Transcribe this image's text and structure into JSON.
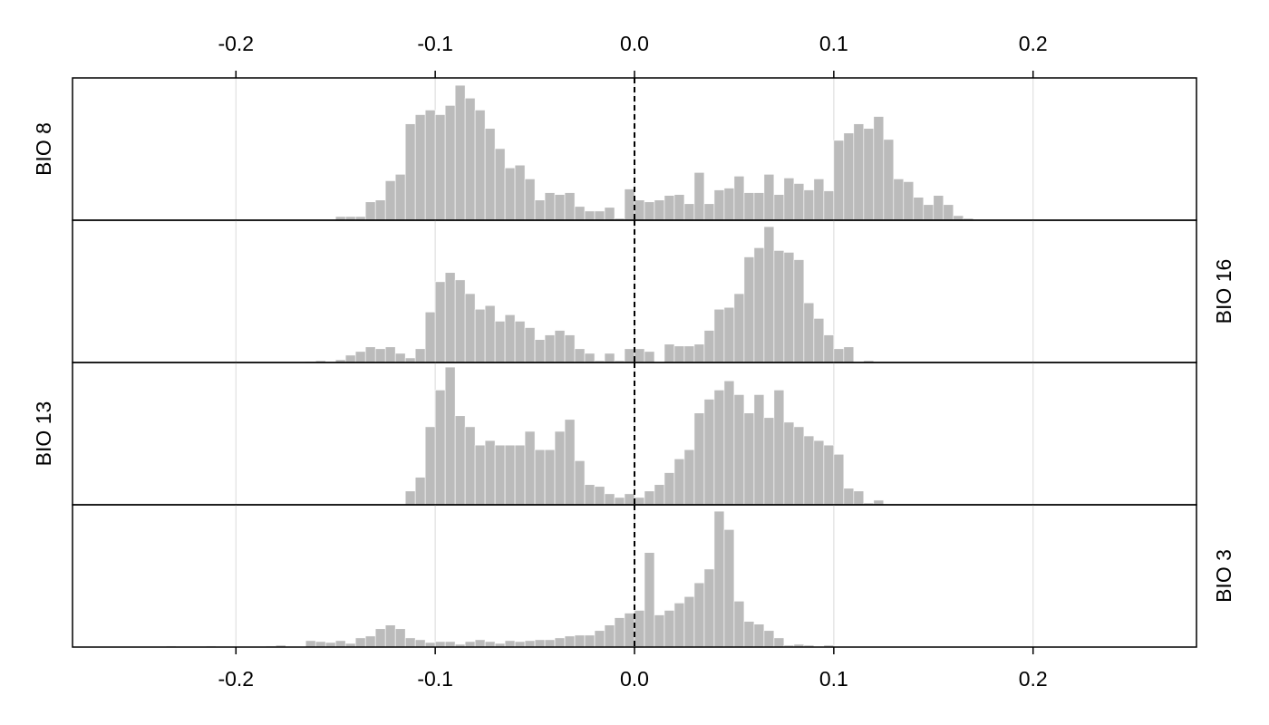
{
  "chart_data": [
    {
      "type": "histogram",
      "title": "BIO 8",
      "label_side": "left",
      "color": "#bbbbbb",
      "bins": [
        -0.235,
        -0.23,
        -0.225,
        -0.22,
        -0.215,
        -0.21,
        -0.205,
        -0.2,
        -0.195,
        -0.19,
        -0.185,
        -0.18,
        -0.175,
        -0.17,
        -0.165,
        -0.16,
        -0.155,
        -0.15,
        -0.145,
        -0.14,
        -0.135,
        -0.13,
        -0.125,
        -0.12,
        -0.115,
        -0.11,
        -0.105,
        -0.1,
        -0.095,
        -0.09,
        -0.085,
        -0.08,
        -0.075,
        -0.07,
        -0.065,
        -0.06,
        -0.055,
        -0.05,
        -0.045,
        -0.04,
        -0.035,
        -0.03,
        -0.025,
        -0.02,
        -0.015,
        -0.01,
        -0.005,
        0,
        0.005,
        0.01,
        0.015,
        0.02,
        0.025,
        0.03,
        0.035,
        0.04,
        0.045,
        0.05,
        0.055,
        0.06,
        0.065,
        0.07,
        0.075,
        0.08,
        0.085,
        0.09,
        0.095,
        0.1,
        0.105,
        0.11,
        0.115,
        0.12,
        0.125,
        0.13,
        0.135,
        0.14,
        0.145,
        0.15,
        0.155,
        0.16,
        0.165,
        0.17,
        0.175,
        0.18
      ],
      "values": [
        0,
        0,
        0,
        0,
        0,
        0,
        0,
        0,
        0,
        0,
        0,
        0,
        0,
        0,
        0,
        0,
        0,
        4,
        4,
        4,
        20,
        22,
        43,
        50,
        105,
        115,
        120,
        115,
        125,
        147,
        133,
        120,
        100,
        78,
        57,
        60,
        45,
        22,
        30,
        28,
        30,
        15,
        10,
        10,
        14,
        2,
        34,
        22,
        20,
        22,
        27,
        28,
        18,
        52,
        18,
        33,
        35,
        48,
        30,
        30,
        50,
        28,
        46,
        40,
        33,
        45,
        32,
        87,
        95,
        105,
        100,
        113,
        88,
        45,
        42,
        25,
        17,
        27,
        17,
        5,
        2,
        0,
        0
      ],
      "xlim": [
        -0.282,
        0.282
      ],
      "xticks": [
        -0.2,
        -0.1,
        {
          "value": 0,
          "label": "0.0"
        },
        0.1,
        0.2
      ],
      "ylim": [
        0,
        155
      ],
      "grid": true,
      "vline": 0
    },
    {
      "type": "histogram",
      "title": "BIO 16",
      "label_side": "right",
      "color": "#bbbbbb",
      "bins": [
        -0.235,
        -0.23,
        -0.225,
        -0.22,
        -0.215,
        -0.21,
        -0.205,
        -0.2,
        -0.195,
        -0.19,
        -0.185,
        -0.18,
        -0.175,
        -0.17,
        -0.165,
        -0.16,
        -0.155,
        -0.15,
        -0.145,
        -0.14,
        -0.135,
        -0.13,
        -0.125,
        -0.12,
        -0.115,
        -0.11,
        -0.105,
        -0.1,
        -0.095,
        -0.09,
        -0.085,
        -0.08,
        -0.075,
        -0.07,
        -0.065,
        -0.06,
        -0.055,
        -0.05,
        -0.045,
        -0.04,
        -0.035,
        -0.03,
        -0.025,
        -0.02,
        -0.015,
        -0.01,
        -0.005,
        0,
        0.005,
        0.01,
        0.015,
        0.02,
        0.025,
        0.03,
        0.035,
        0.04,
        0.045,
        0.05,
        0.055,
        0.06,
        0.065,
        0.07,
        0.075,
        0.08,
        0.085,
        0.09,
        0.095,
        0.1,
        0.105,
        0.11,
        0.115,
        0.12,
        0.125,
        0.13,
        0.135,
        0.14,
        0.145,
        0.15,
        0.155,
        0.16,
        0.165,
        0.17,
        0.175,
        0.18
      ],
      "values": [
        0,
        0,
        0,
        0,
        0,
        0,
        0,
        0,
        0,
        0,
        0,
        0,
        0,
        0,
        1,
        2,
        0,
        3,
        8,
        12,
        17,
        15,
        17,
        10,
        5,
        15,
        55,
        88,
        98,
        90,
        75,
        58,
        62,
        45,
        52,
        45,
        38,
        25,
        30,
        35,
        30,
        15,
        10,
        2,
        10,
        2,
        15,
        15,
        12,
        0,
        20,
        18,
        18,
        20,
        35,
        58,
        60,
        75,
        115,
        125,
        148,
        122,
        120,
        112,
        65,
        48,
        30,
        15,
        17,
        0,
        2,
        0,
        0,
        0,
        0,
        0,
        0,
        0,
        0,
        0,
        0,
        0,
        0
      ],
      "xlim": [
        -0.282,
        0.282
      ],
      "xticks": [
        -0.2,
        -0.1,
        {
          "value": 0,
          "label": "0.0"
        },
        0.1,
        0.2
      ],
      "ylim": [
        0,
        155
      ],
      "grid": true,
      "vline": 0
    },
    {
      "type": "histogram",
      "title": "BIO 13",
      "label_side": "left",
      "color": "#bbbbbb",
      "bins": [
        -0.235,
        -0.23,
        -0.225,
        -0.22,
        -0.215,
        -0.21,
        -0.205,
        -0.2,
        -0.195,
        -0.19,
        -0.185,
        -0.18,
        -0.175,
        -0.17,
        -0.165,
        -0.16,
        -0.155,
        -0.15,
        -0.145,
        -0.14,
        -0.135,
        -0.13,
        -0.125,
        -0.12,
        -0.115,
        -0.11,
        -0.105,
        -0.1,
        -0.095,
        -0.09,
        -0.085,
        -0.08,
        -0.075,
        -0.07,
        -0.065,
        -0.06,
        -0.055,
        -0.05,
        -0.045,
        -0.04,
        -0.035,
        -0.03,
        -0.025,
        -0.02,
        -0.015,
        -0.01,
        -0.005,
        0,
        0.005,
        0.01,
        0.015,
        0.02,
        0.025,
        0.03,
        0.035,
        0.04,
        0.045,
        0.05,
        0.055,
        0.06,
        0.065,
        0.07,
        0.075,
        0.08,
        0.085,
        0.09,
        0.095,
        0.1,
        0.105,
        0.11,
        0.115,
        0.12,
        0.125,
        0.13,
        0.135,
        0.14,
        0.145,
        0.15,
        0.155,
        0.16,
        0.165,
        0.17,
        0.175,
        0.18
      ],
      "values": [
        0,
        0,
        0,
        0,
        0,
        0,
        0,
        0,
        0,
        0,
        0,
        0,
        0,
        0,
        0,
        0,
        0,
        0,
        0,
        0,
        0,
        0,
        0,
        0,
        15,
        30,
        85,
        125,
        150,
        97,
        85,
        65,
        70,
        65,
        65,
        65,
        80,
        60,
        60,
        80,
        93,
        48,
        22,
        20,
        12,
        8,
        12,
        8,
        15,
        22,
        35,
        50,
        60,
        100,
        115,
        125,
        135,
        120,
        100,
        120,
        95,
        125,
        90,
        85,
        75,
        70,
        65,
        55,
        18,
        15,
        2,
        5,
        0,
        0,
        0,
        0,
        0,
        0,
        0,
        0,
        0,
        0,
        0
      ],
      "xlim": [
        -0.282,
        0.282
      ],
      "xticks": [
        -0.2,
        -0.1,
        {
          "value": 0,
          "label": "0.0"
        },
        0.1,
        0.2
      ],
      "ylim": [
        0,
        155
      ],
      "grid": true,
      "vline": 0
    },
    {
      "type": "histogram",
      "title": "BIO 3",
      "label_side": "right",
      "color": "#bbbbbb",
      "bins": [
        -0.235,
        -0.23,
        -0.225,
        -0.22,
        -0.215,
        -0.21,
        -0.205,
        -0.2,
        -0.195,
        -0.19,
        -0.185,
        -0.18,
        -0.175,
        -0.17,
        -0.165,
        -0.16,
        -0.155,
        -0.15,
        -0.145,
        -0.14,
        -0.135,
        -0.13,
        -0.125,
        -0.12,
        -0.115,
        -0.11,
        -0.105,
        -0.1,
        -0.095,
        -0.09,
        -0.085,
        -0.08,
        -0.075,
        -0.07,
        -0.065,
        -0.06,
        -0.055,
        -0.05,
        -0.045,
        -0.04,
        -0.035,
        -0.03,
        -0.025,
        -0.02,
        -0.015,
        -0.01,
        -0.005,
        0,
        0.005,
        0.01,
        0.015,
        0.02,
        0.025,
        0.03,
        0.035,
        0.04,
        0.045,
        0.05,
        0.055,
        0.06,
        0.065,
        0.07,
        0.075,
        0.08,
        0.085,
        0.09,
        0.095,
        0.1,
        0.105,
        0.11,
        0.115,
        0.12,
        0.125,
        0.13,
        0.135,
        0.14,
        0.145,
        0.15,
        0.155,
        0.16,
        0.165,
        0.17,
        0.175,
        0.18
      ],
      "values": [
        1,
        0,
        0,
        0,
        1,
        0,
        0,
        0,
        0,
        0,
        1,
        2,
        0,
        0,
        7,
        6,
        5,
        7,
        4,
        10,
        12,
        20,
        24,
        20,
        10,
        8,
        5,
        6,
        6,
        3,
        6,
        8,
        6,
        4,
        7,
        6,
        7,
        8,
        8,
        10,
        12,
        13,
        13,
        18,
        24,
        32,
        37,
        40,
        103,
        35,
        40,
        48,
        55,
        70,
        85,
        148,
        128,
        50,
        28,
        25,
        18,
        10,
        2,
        3,
        2,
        0,
        2,
        0,
        0,
        0,
        0,
        0,
        0,
        0,
        0,
        0,
        0,
        0,
        0,
        0,
        0,
        0,
        0
      ],
      "xlim": [
        -0.282,
        0.282
      ],
      "xticks": [
        -0.2,
        -0.1,
        {
          "value": 0,
          "label": "0.0"
        },
        0.1,
        0.2
      ],
      "ylim": [
        0,
        155
      ],
      "grid": true,
      "vline": 0
    }
  ]
}
